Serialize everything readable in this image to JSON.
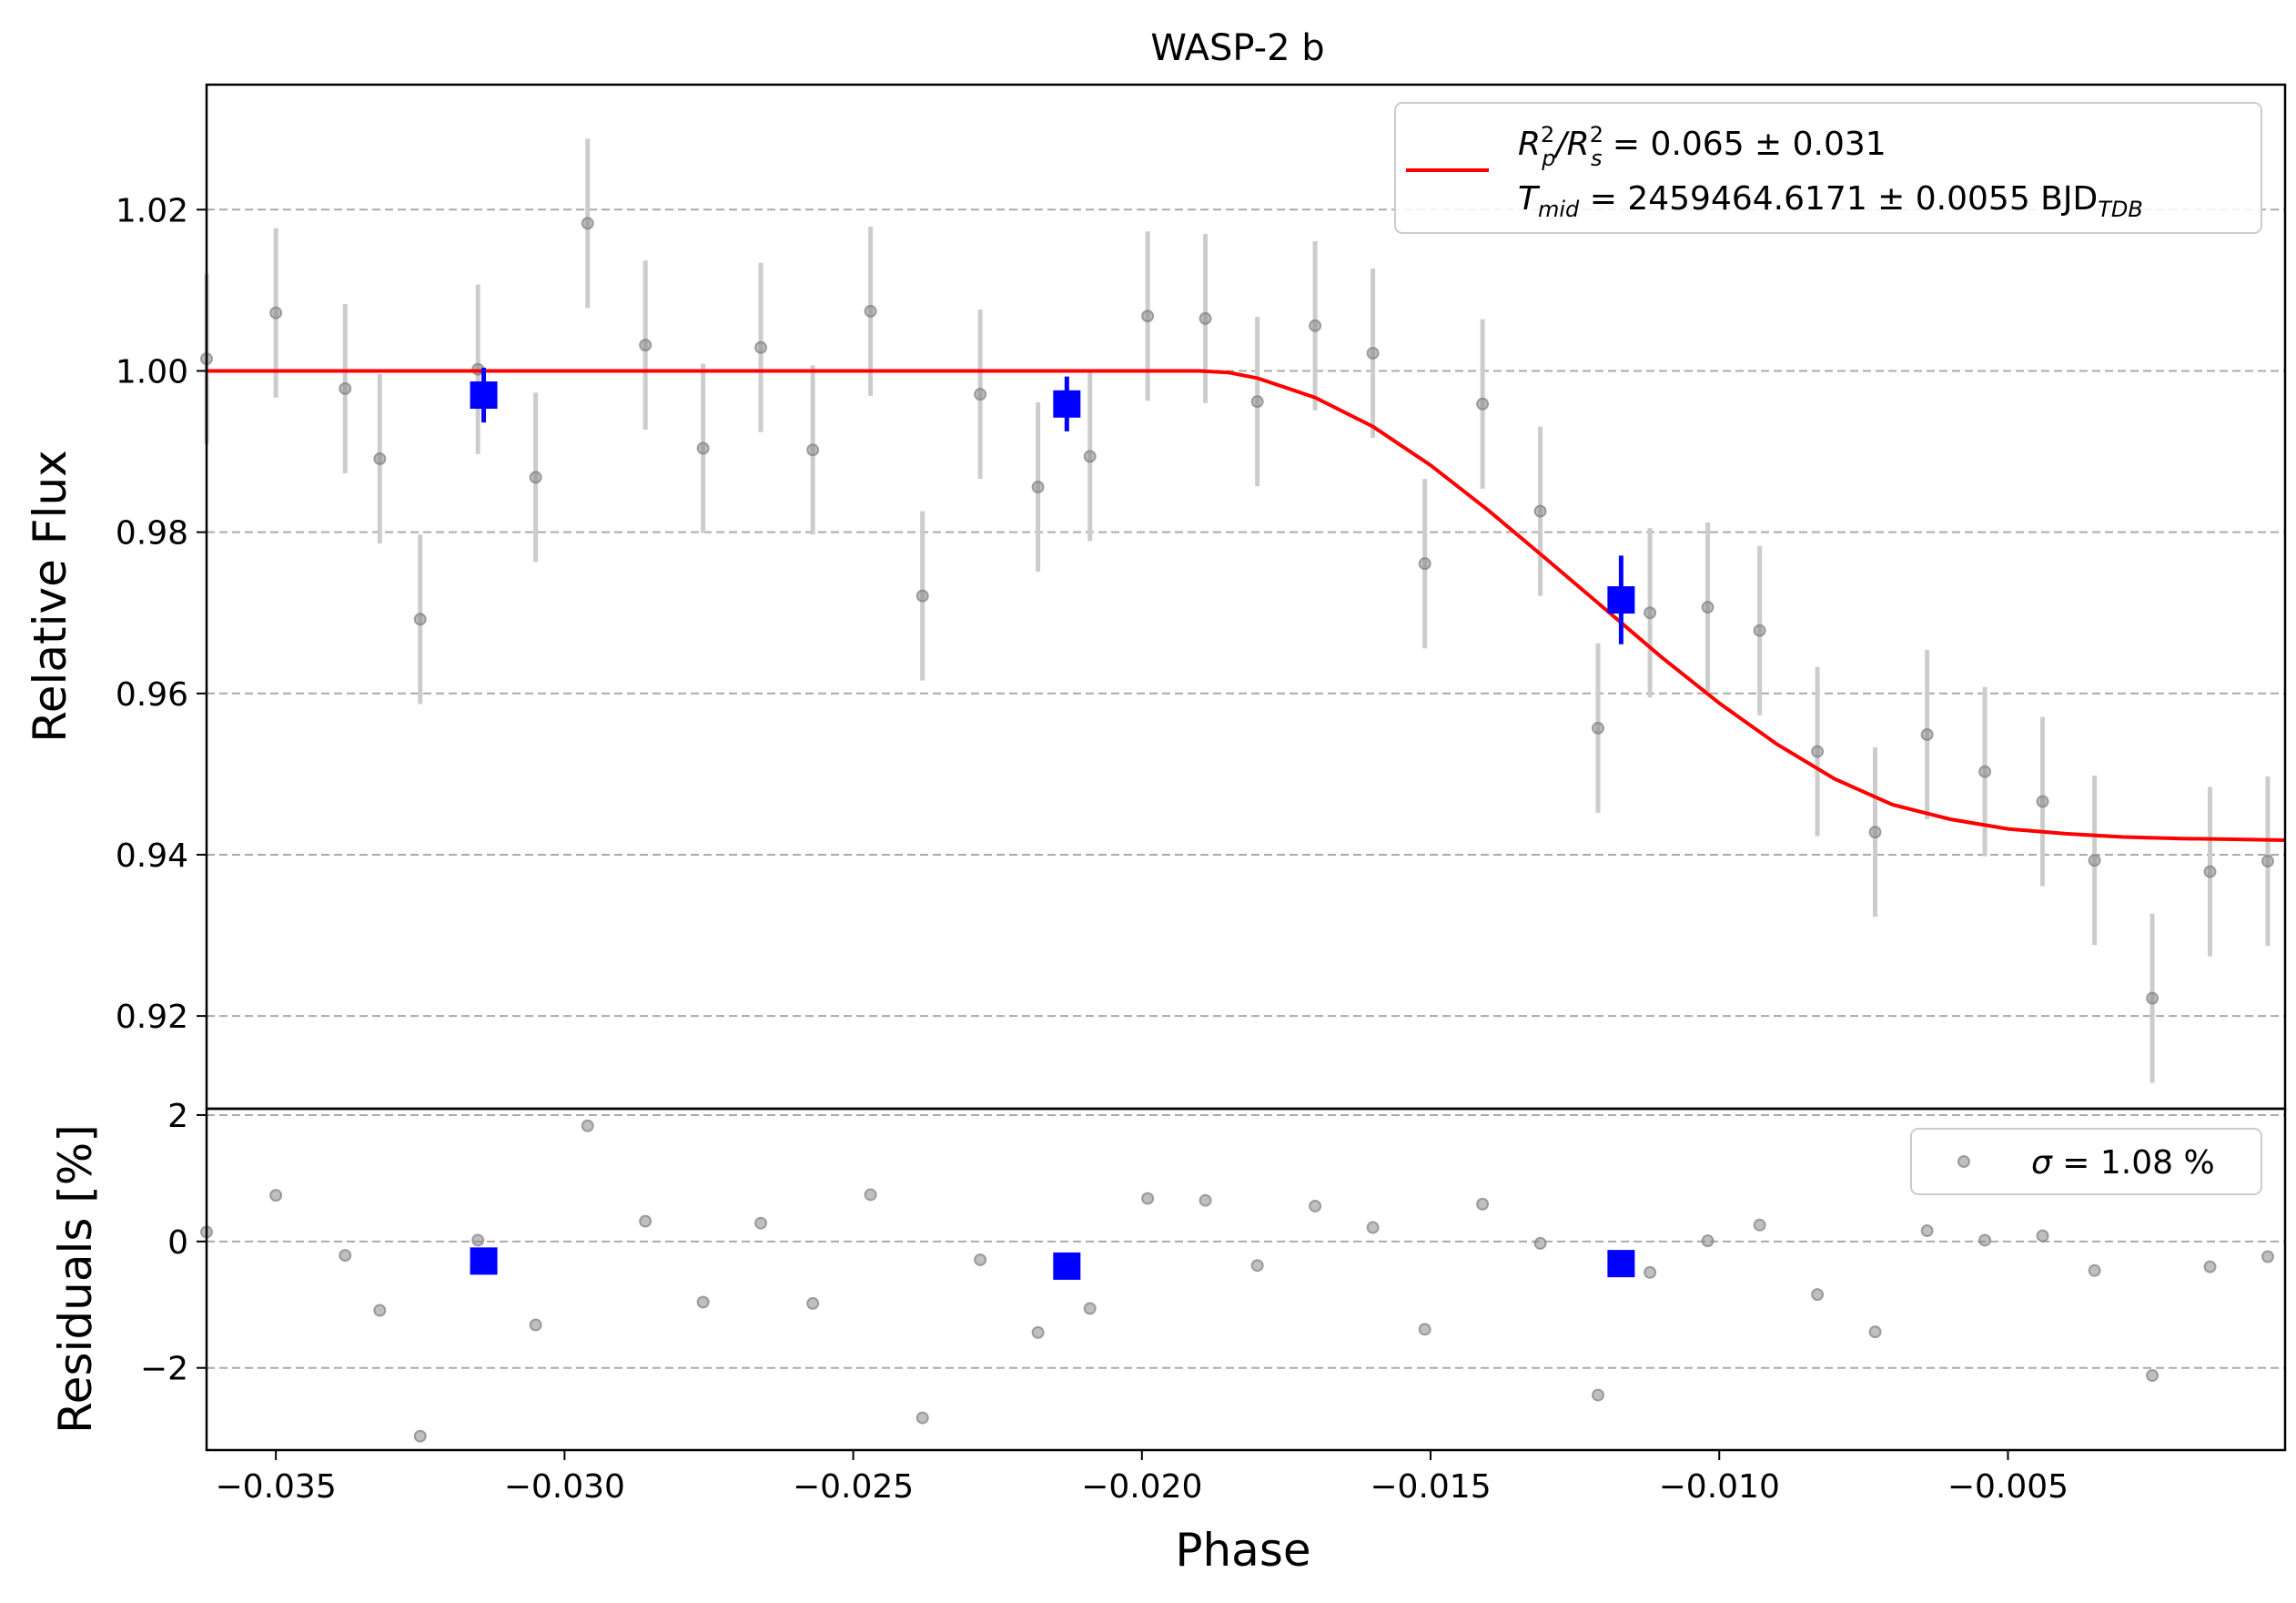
{
  "chart_data": {
    "type": "scatter",
    "title": "WASP-2 b",
    "xlabel": "Phase",
    "colors": {
      "data_points": "#7f7f7f",
      "error_bars": "#cccccc",
      "binned": "#0000ff",
      "model": "#ff0000",
      "grid": "#aaaaaa"
    },
    "top_panel": {
      "ylabel": "Relative Flux",
      "xlim": [
        -0.0362,
        -0.0002
      ],
      "ylim": [
        0.9085,
        1.0355
      ],
      "yticks": [
        {
          "v": 0.92,
          "label": "0.92"
        },
        {
          "v": 0.94,
          "label": "0.94"
        },
        {
          "v": 0.96,
          "label": "0.96"
        },
        {
          "v": 0.98,
          "label": "0.98"
        },
        {
          "v": 1.0,
          "label": "1.00"
        },
        {
          "v": 1.02,
          "label": "1.02"
        }
      ],
      "grid": "horizontal dashed",
      "legend": {
        "placement": "top-right",
        "line1_parts": [
          "R",
          "2",
          "p",
          "/R",
          "2",
          "s",
          " = 0.065 ± 0.031"
        ],
        "line2_parts": [
          "T",
          "mid",
          " = 2459464.6171 ± 0.0055 BJD",
          "TDB"
        ]
      },
      "data_series": {
        "name": "",
        "x": [
          -0.0362,
          -0.035,
          -0.0338,
          -0.0332,
          -0.0325,
          -0.0315,
          -0.0305,
          -0.0296,
          -0.0286,
          -0.0276,
          -0.0266,
          -0.0257,
          -0.0247,
          -0.0238,
          -0.0228,
          -0.0218,
          -0.0209,
          -0.0199,
          -0.0189,
          -0.018,
          -0.017,
          -0.016,
          -0.0151,
          -0.0141,
          -0.0131,
          -0.0121,
          -0.0112,
          -0.0102,
          -0.0093,
          -0.0083,
          -0.0073,
          -0.0064,
          -0.0054,
          -0.0044,
          -0.0035,
          -0.0025,
          -0.0015,
          -0.0005
        ],
        "y": [
          1.0015,
          1.0072,
          0.9978,
          0.9891,
          0.9692,
          1.0002,
          0.9868,
          1.0183,
          1.0032,
          0.9904,
          1.0029,
          0.9902,
          1.0074,
          0.9721,
          0.9971,
          0.9856,
          0.9894,
          1.0068,
          1.0065,
          0.9962,
          1.0056,
          1.0022,
          0.9761,
          0.9959,
          0.9826,
          0.9557,
          0.97,
          0.9707,
          0.9678,
          0.9528,
          0.9428,
          0.9549,
          0.9503,
          0.9466,
          0.9393,
          0.9222,
          0.9379,
          0.9392
        ],
        "yerr": 0.0105
      },
      "binned_series": {
        "name": "",
        "x": [
          -0.0314,
          -0.0213,
          -0.0117
        ],
        "y": [
          0.997,
          0.9959,
          0.9716
        ],
        "yerr": [
          0.0034,
          0.0034,
          0.0055
        ]
      },
      "model_curve": {
        "x": [
          -0.0362,
          -0.034,
          -0.032,
          -0.03,
          -0.028,
          -0.026,
          -0.024,
          -0.022,
          -0.02,
          -0.019,
          -0.0185,
          -0.018,
          -0.017,
          -0.016,
          -0.015,
          -0.014,
          -0.013,
          -0.012,
          -0.011,
          -0.01,
          -0.009,
          -0.008,
          -0.007,
          -0.006,
          -0.005,
          -0.004,
          -0.003,
          -0.002,
          -0.001,
          -0.0002
        ],
        "y": [
          1.0,
          1.0,
          1.0,
          1.0,
          1.0,
          1.0,
          1.0,
          1.0,
          1.0,
          1.0,
          0.9998,
          0.9991,
          0.9967,
          0.9931,
          0.9883,
          0.9827,
          0.9767,
          0.9706,
          0.9645,
          0.9588,
          0.9537,
          0.9494,
          0.9462,
          0.9444,
          0.9432,
          0.9426,
          0.9422,
          0.942,
          0.9419,
          0.9418
        ]
      }
    },
    "bottom_panel": {
      "ylabel": "Residuals [%]",
      "ylim": [
        -3.3,
        2.1
      ],
      "yticks": [
        {
          "v": -2,
          "label": "−2"
        },
        {
          "v": 0,
          "label": "0"
        },
        {
          "v": 2,
          "label": "2"
        }
      ],
      "grid": "horizontal dashed",
      "legend": {
        "placement": "top-right",
        "prefix": "σ",
        "suffix": " = 1.08 %"
      },
      "data_series": {
        "name": "",
        "y": [
          0.15,
          0.73,
          -0.22,
          -1.09,
          -3.08,
          0.02,
          -1.32,
          1.83,
          0.32,
          -0.96,
          0.29,
          -0.98,
          0.74,
          -2.79,
          -0.29,
          -1.44,
          -1.06,
          0.68,
          0.65,
          -0.38,
          0.56,
          0.22,
          -1.39,
          0.59,
          -0.03,
          -2.43,
          -0.49,
          0.01,
          0.26,
          -0.84,
          -1.43,
          0.17,
          0.02,
          0.09,
          -0.46,
          -2.12,
          -0.4,
          -0.24
        ]
      },
      "binned_series": {
        "name": "",
        "y": [
          -0.31,
          -0.39,
          -0.35
        ]
      }
    },
    "xticks": [
      {
        "v": -0.035,
        "label": "−0.035"
      },
      {
        "v": -0.03,
        "label": "−0.030"
      },
      {
        "v": -0.025,
        "label": "−0.025"
      },
      {
        "v": -0.02,
        "label": "−0.020"
      },
      {
        "v": -0.015,
        "label": "−0.015"
      },
      {
        "v": -0.01,
        "label": "−0.010"
      },
      {
        "v": -0.005,
        "label": "−0.005"
      }
    ]
  }
}
